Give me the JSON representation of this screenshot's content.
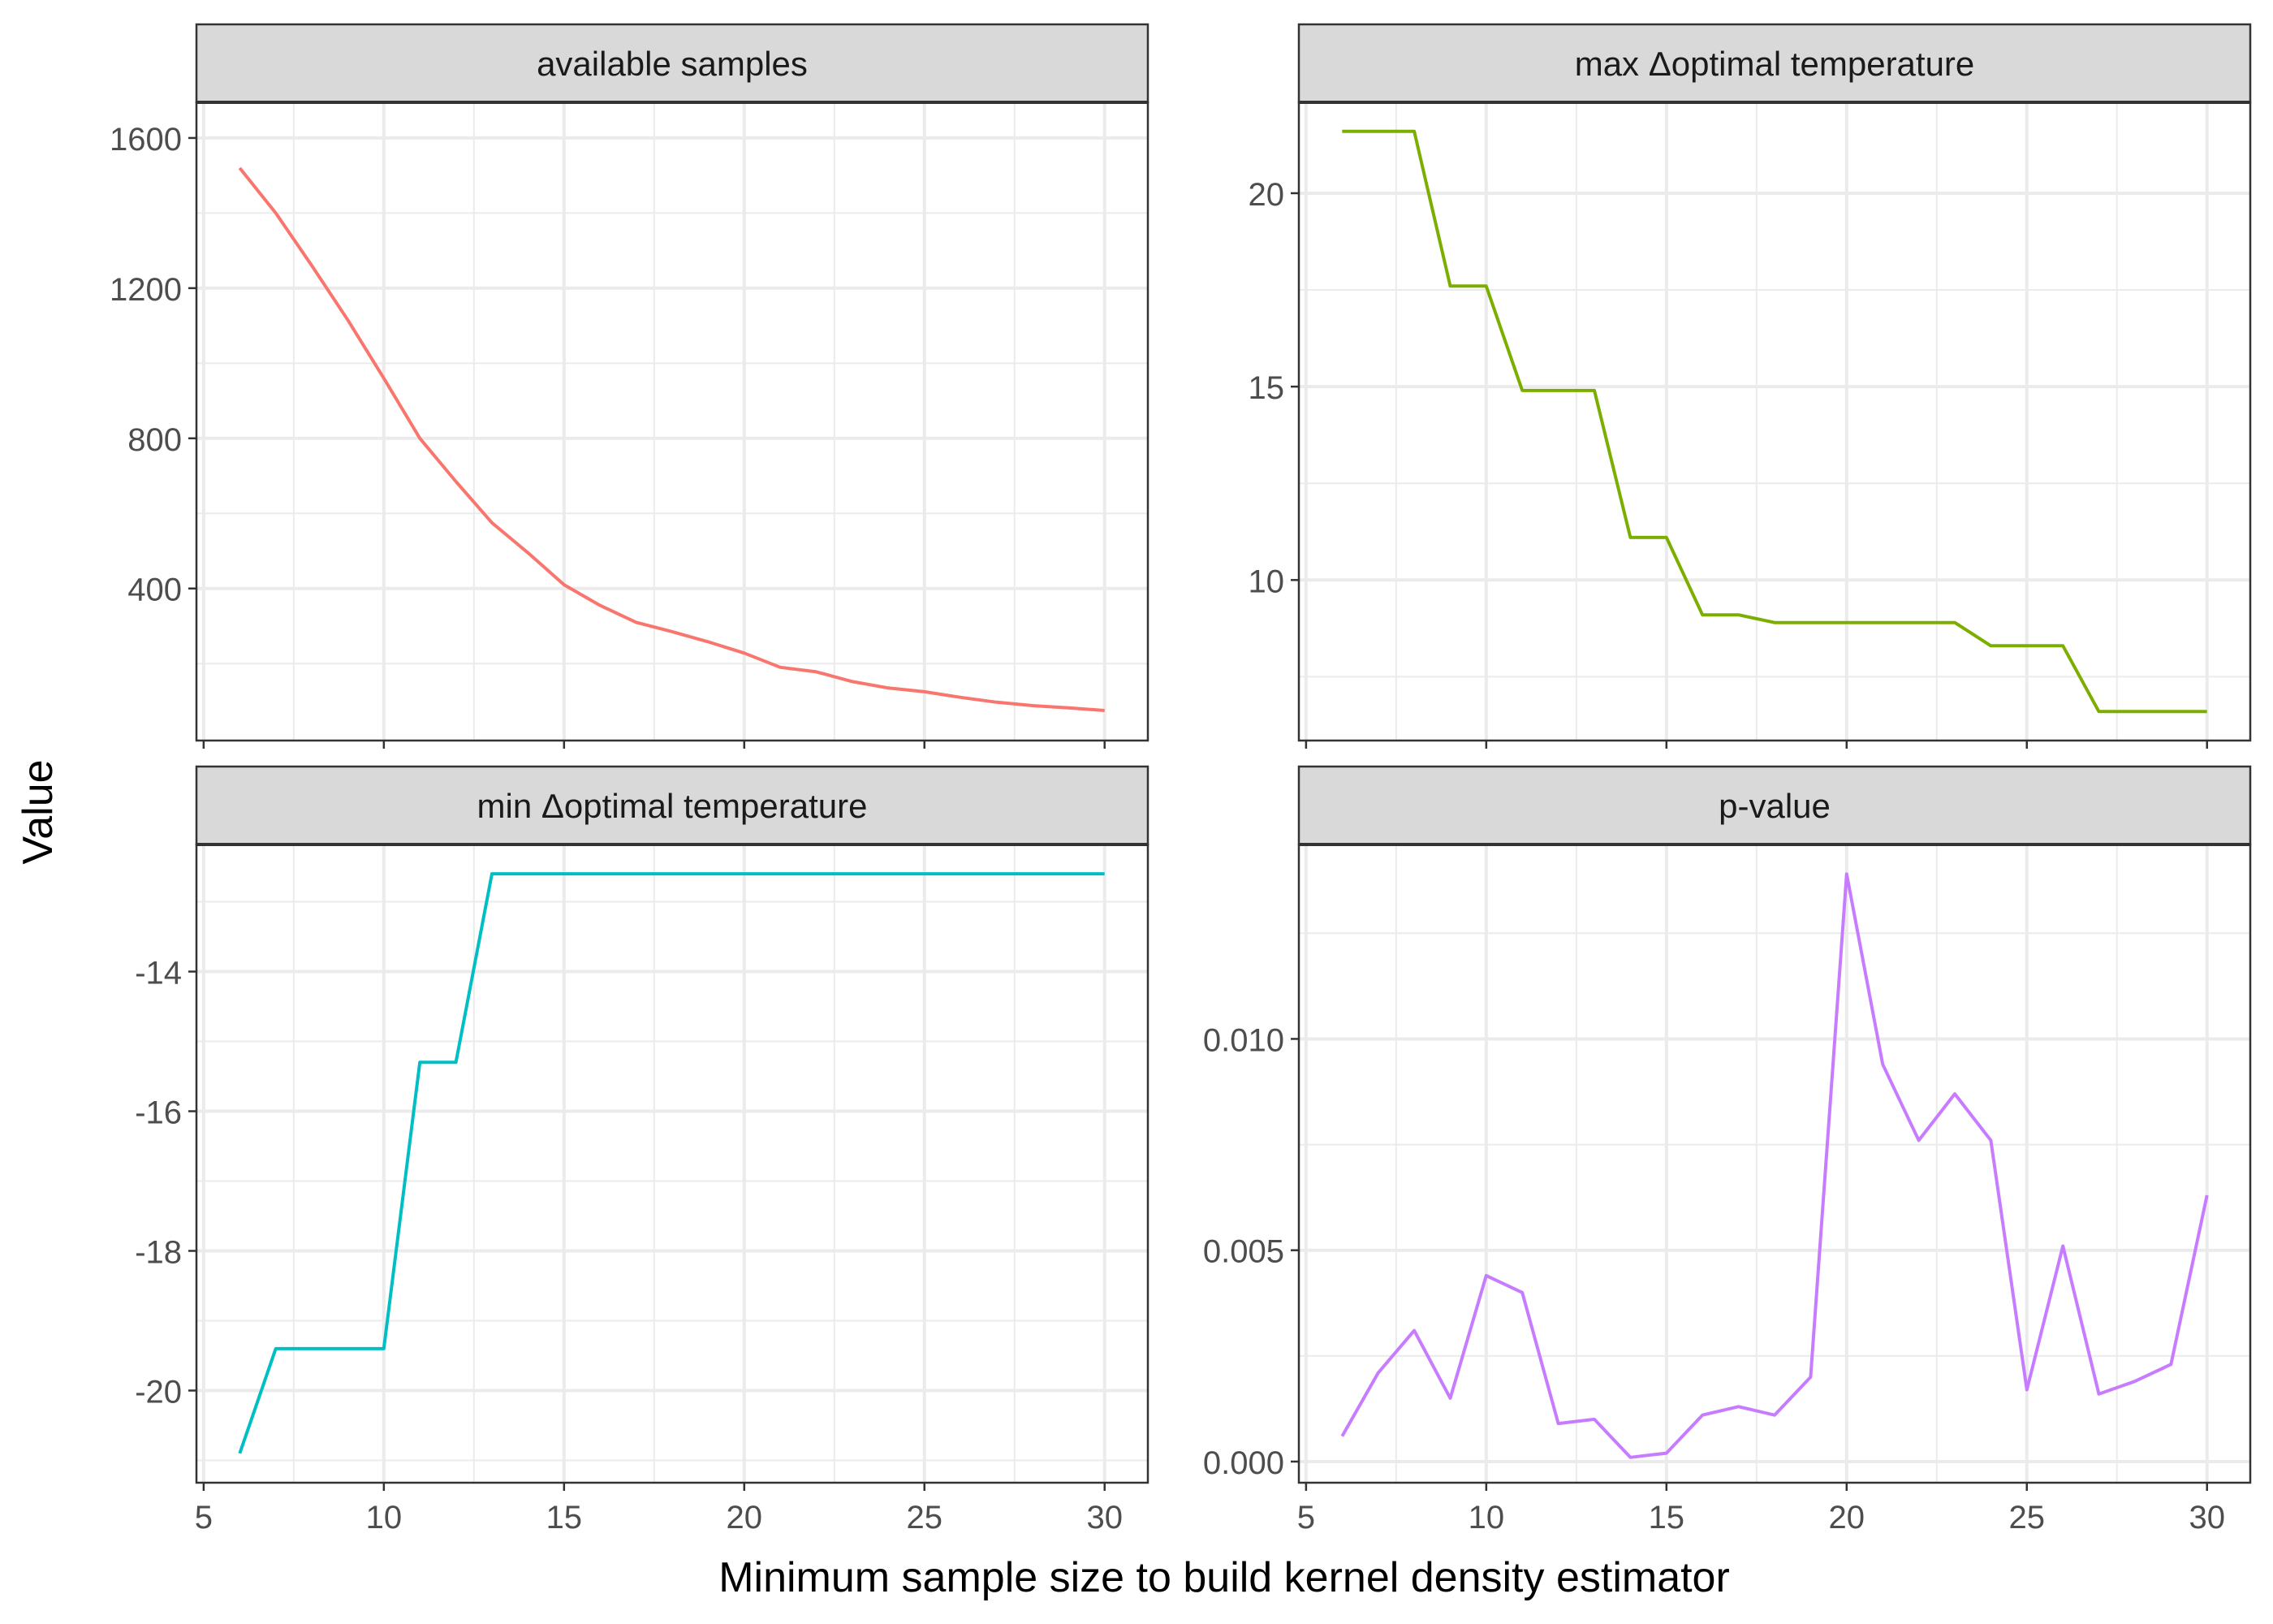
{
  "figure": {
    "ylabel": "Value",
    "xlabel": "Minimum sample size to build kernel density estimator"
  },
  "chart_data": [
    {
      "type": "line",
      "title": "available samples",
      "color": "#F8766D",
      "x": [
        6,
        7,
        8,
        9,
        10,
        11,
        12,
        13,
        14,
        15,
        16,
        17,
        18,
        19,
        20,
        21,
        22,
        23,
        24,
        25,
        26,
        27,
        28,
        29,
        30
      ],
      "y": [
        1520,
        1400,
        1260,
        1115,
        960,
        800,
        685,
        575,
        495,
        410,
        355,
        310,
        285,
        258,
        228,
        190,
        178,
        152,
        135,
        125,
        110,
        97,
        88,
        82,
        75
      ],
      "xlim": [
        4.8,
        31.2
      ],
      "ylim": [
        -5,
        1695
      ],
      "xticks": [
        5,
        10,
        15,
        20,
        25,
        30
      ],
      "xminor": [
        7.5,
        12.5,
        17.5,
        22.5,
        27.5
      ],
      "yticks": [
        400,
        800,
        1200,
        1600
      ],
      "ytick_labels": [
        "400",
        "800",
        "1200",
        "1600"
      ],
      "yminor": [
        200,
        600,
        1000,
        1400
      ]
    },
    {
      "type": "line",
      "title": "max Δoptimal temperature",
      "color": "#7CAE00",
      "x": [
        6,
        7,
        8,
        9,
        10,
        11,
        12,
        13,
        14,
        15,
        16,
        17,
        18,
        19,
        20,
        21,
        22,
        23,
        24,
        25,
        26,
        27,
        28,
        29,
        30
      ],
      "y": [
        21.6,
        21.6,
        21.6,
        17.6,
        17.6,
        14.9,
        14.9,
        14.9,
        11.1,
        11.1,
        9.1,
        9.1,
        8.9,
        8.9,
        8.9,
        8.9,
        8.9,
        8.9,
        8.3,
        8.3,
        8.3,
        6.6,
        6.6,
        6.6,
        6.6
      ],
      "xlim": [
        4.8,
        31.2
      ],
      "ylim": [
        5.85,
        22.35
      ],
      "xticks": [
        5,
        10,
        15,
        20,
        25,
        30
      ],
      "xminor": [
        7.5,
        12.5,
        17.5,
        22.5,
        27.5
      ],
      "yticks": [
        10,
        15,
        20
      ],
      "ytick_labels": [
        "10",
        "15",
        "20"
      ],
      "yminor": [
        7.5,
        12.5,
        17.5
      ]
    },
    {
      "type": "line",
      "title": "min Δoptimal temperature",
      "color": "#00BFC4",
      "x": [
        6,
        7,
        8,
        9,
        10,
        11,
        12,
        13,
        14,
        15,
        16,
        17,
        18,
        19,
        20,
        21,
        22,
        23,
        24,
        25,
        26,
        27,
        28,
        29,
        30
      ],
      "y": [
        -20.9,
        -19.4,
        -19.4,
        -19.4,
        -19.4,
        -15.3,
        -15.3,
        -12.6,
        -12.6,
        -12.6,
        -12.6,
        -12.6,
        -12.6,
        -12.6,
        -12.6,
        -12.6,
        -12.6,
        -12.6,
        -12.6,
        -12.6,
        -12.6,
        -12.6,
        -12.6,
        -12.6,
        -12.6
      ],
      "xlim": [
        4.8,
        31.2
      ],
      "ylim": [
        -21.32,
        -12.18
      ],
      "xticks": [
        5,
        10,
        15,
        20,
        25,
        30
      ],
      "xminor": [
        7.5,
        12.5,
        17.5,
        22.5,
        27.5
      ],
      "yticks": [
        -20,
        -18,
        -16,
        -14
      ],
      "ytick_labels": [
        "-20",
        "-18",
        "-16",
        "-14"
      ],
      "yminor": [
        -21,
        -19,
        -17,
        -15,
        -13
      ]
    },
    {
      "type": "line",
      "title": "p-value",
      "color": "#C77CFF",
      "x": [
        6,
        7,
        8,
        9,
        10,
        11,
        12,
        13,
        14,
        15,
        16,
        17,
        18,
        19,
        20,
        21,
        22,
        23,
        24,
        25,
        26,
        27,
        28,
        29,
        30
      ],
      "y": [
        0.0006,
        0.0021,
        0.0031,
        0.0015,
        0.0044,
        0.004,
        0.0009,
        0.001,
        0.0001,
        0.0002,
        0.0011,
        0.0013,
        0.0011,
        0.002,
        0.0139,
        0.0094,
        0.0076,
        0.0087,
        0.0076,
        0.0017,
        0.0051,
        0.0016,
        0.0019,
        0.0023,
        0.0063
      ],
      "xlim": [
        4.8,
        31.2
      ],
      "ylim": [
        -0.0005,
        0.0146
      ],
      "xticks": [
        5,
        10,
        15,
        20,
        25,
        30
      ],
      "xminor": [
        7.5,
        12.5,
        17.5,
        22.5,
        27.5
      ],
      "yticks": [
        0.0,
        0.005,
        0.01
      ],
      "ytick_labels": [
        "0.000",
        "0.005",
        "0.010"
      ],
      "yminor": [
        0.0025,
        0.0075,
        0.0125
      ]
    }
  ]
}
